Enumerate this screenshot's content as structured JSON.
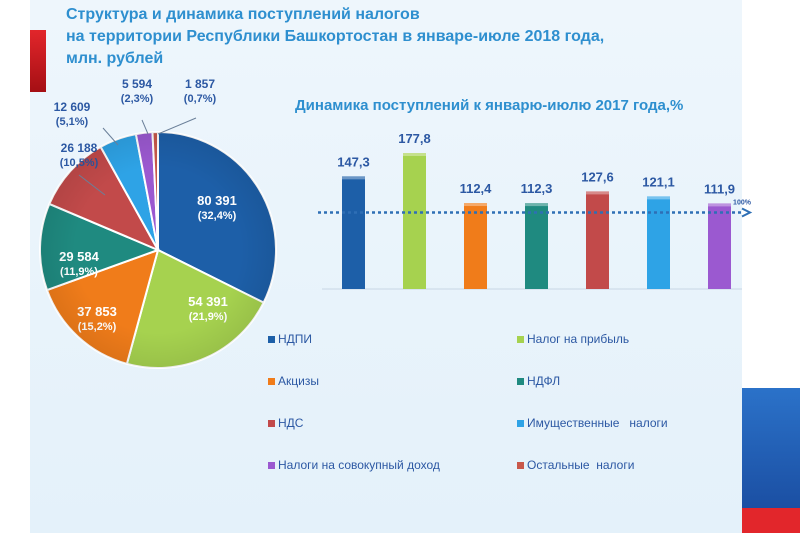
{
  "title": {
    "line1": "Структура и динамика поступлений налогов",
    "line2": "на территории Республики Башкортостан в январе-июле 2018 года,",
    "line3": "млн. рублей"
  },
  "colors": {
    "title": "#2e8fcf",
    "legend_text": "#2c58a3",
    "reference_line": "#2e6fb5"
  },
  "chart_data": [
    {
      "type": "pie",
      "title": "",
      "slices": [
        {
          "name": "НДПИ",
          "value": 80391,
          "value_label": "80 391",
          "pct_label": "(32,4%)",
          "color": "#1d5fa8"
        },
        {
          "name": "Налог на прибыль",
          "value": 54391,
          "value_label": "54 391",
          "pct_label": "(21,9%)",
          "color": "#a6d24f"
        },
        {
          "name": "Акцизы",
          "value": 37853,
          "value_label": "37 853",
          "pct_label": "(15,2%)",
          "color": "#f07c1a"
        },
        {
          "name": "НДФЛ",
          "value": 29584,
          "value_label": "29 584",
          "pct_label": "(11,9%)",
          "color": "#1f8a80"
        },
        {
          "name": "НДС",
          "value": 26188,
          "value_label": "26 188",
          "pct_label": "(10,5%)",
          "color": "#c24a4a"
        },
        {
          "name": "Имущественные налоги",
          "value": 12609,
          "value_label": "12 609",
          "pct_label": "(5,1%)",
          "color": "#2ea3e6"
        },
        {
          "name": "Налоги на совокупный доход",
          "value": 5594,
          "value_label": "5 594",
          "pct_label": "(2,3%)",
          "color": "#9b59d0"
        },
        {
          "name": "Остальные налоги",
          "value": 1857,
          "value_label": "1 857",
          "pct_label": "(0,7%)",
          "color": "#c8584a"
        }
      ]
    },
    {
      "type": "bar",
      "title": "Динамика поступлений к январю-июлю 2017 года,%",
      "categories": [
        "НДПИ",
        "Налог на прибыль",
        "Акцизы",
        "НДФЛ",
        "НДС",
        "Имущественные налоги",
        "Налоги на совокупный доход"
      ],
      "values": [
        147.3,
        177.8,
        112.4,
        112.3,
        127.6,
        121.1,
        111.9
      ],
      "value_labels": [
        "147,3",
        "177,8",
        "112,4",
        "112,3",
        "127,6",
        "121,1",
        "111,9"
      ],
      "colors": [
        "#1d5fa8",
        "#a6d24f",
        "#f07c1a",
        "#1f8a80",
        "#c24a4a",
        "#2ea3e6",
        "#9b59d0"
      ],
      "reference_line": {
        "value": 100,
        "label": "100%"
      },
      "ylim": [
        0,
        200
      ],
      "grid": false
    }
  ],
  "legend": [
    {
      "label": "НДПИ",
      "color": "#1d5fa8"
    },
    {
      "label": "Налог на прибыль",
      "color": "#a6d24f"
    },
    {
      "label": "Акцизы",
      "color": "#f07c1a"
    },
    {
      "label": "НДФЛ",
      "color": "#1f8a80"
    },
    {
      "label": "НДС",
      "color": "#c24a4a"
    },
    {
      "label": "Имущественные   налоги",
      "color": "#2ea3e6"
    },
    {
      "label": "Налоги на совокупный доход",
      "color": "#9b59d0"
    },
    {
      "label": "Остальные  налоги",
      "color": "#c8584a"
    }
  ]
}
